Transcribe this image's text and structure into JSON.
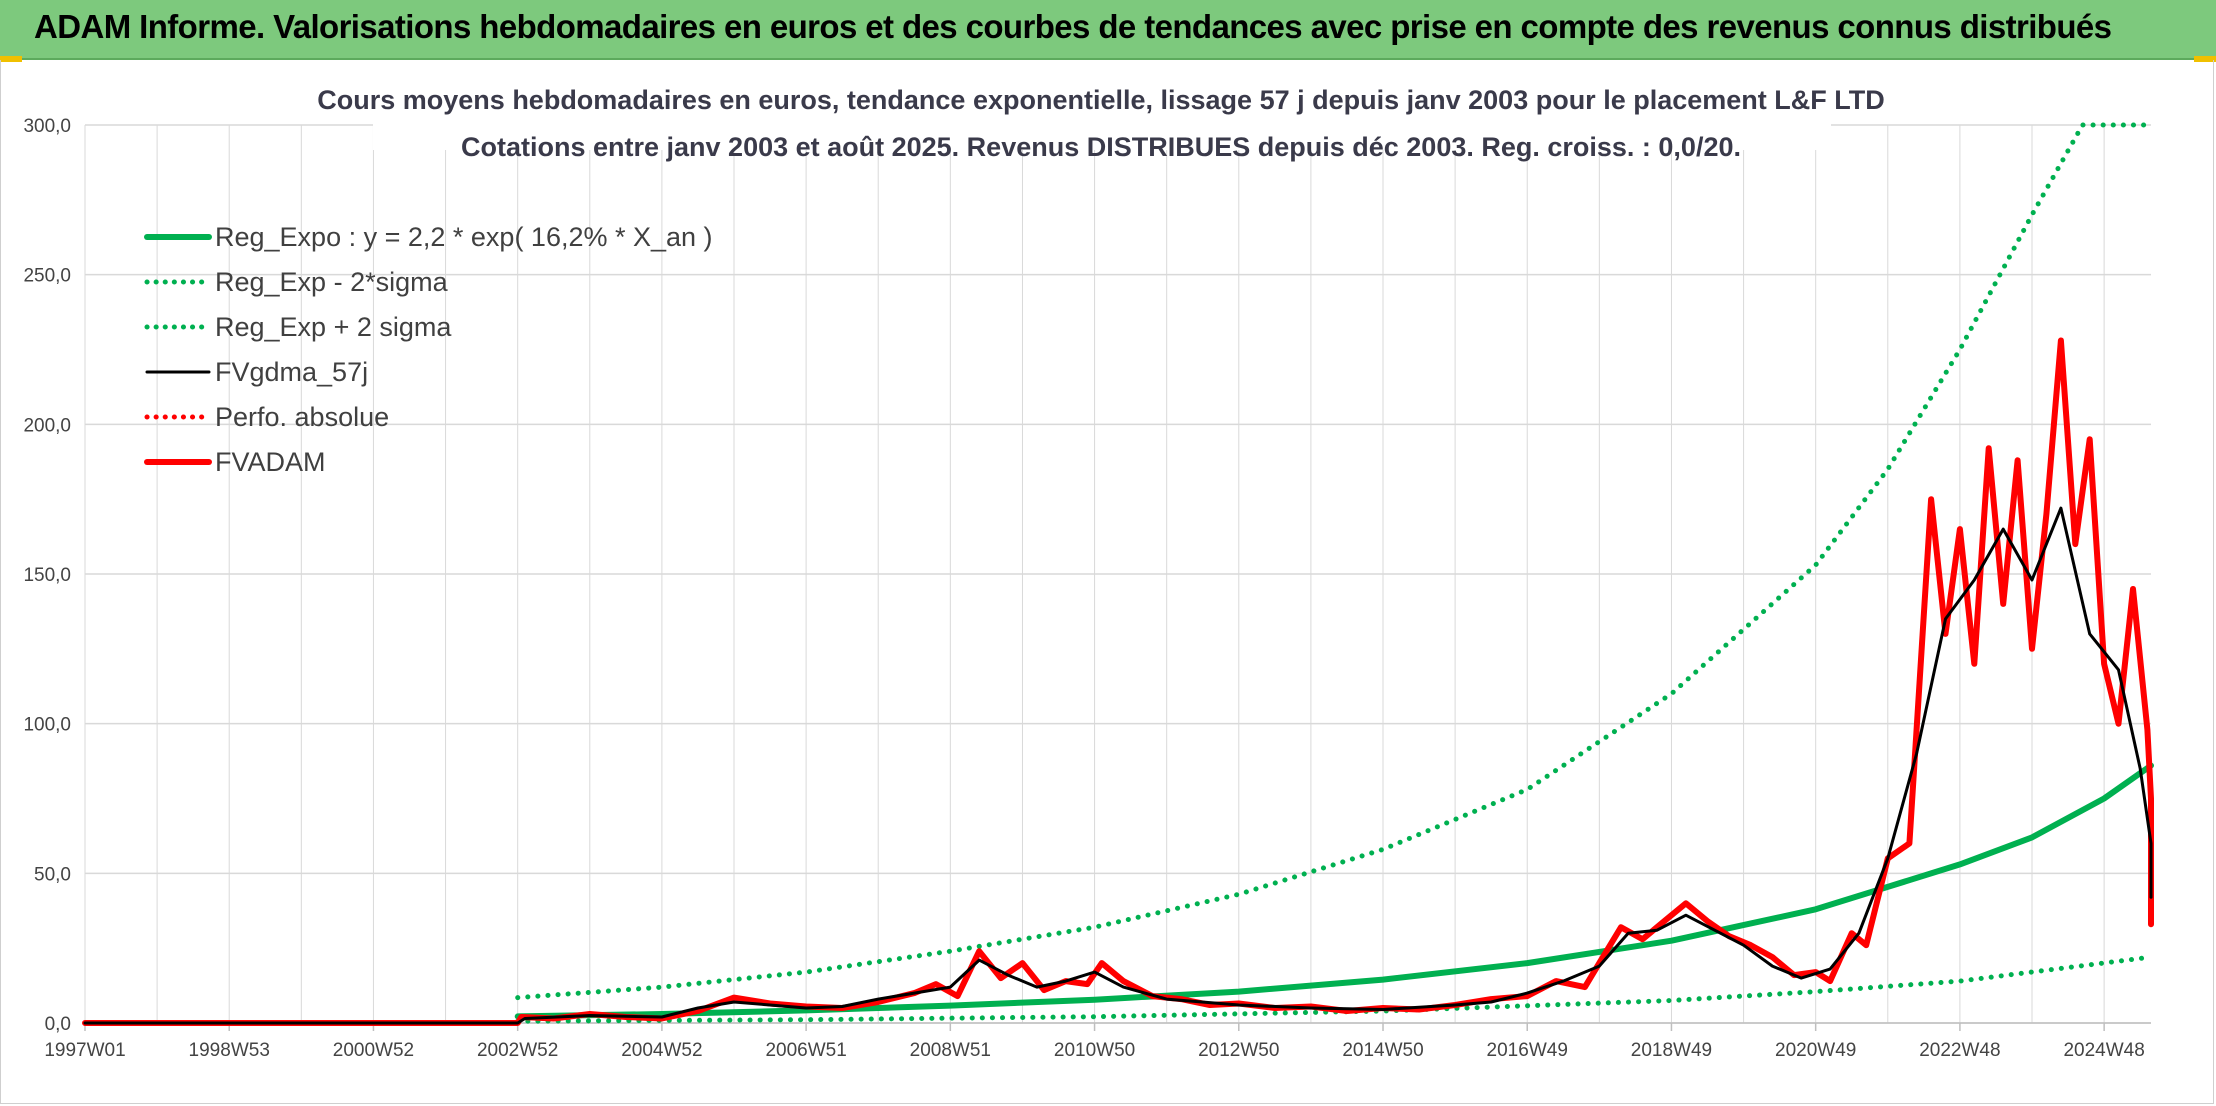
{
  "banner": {
    "title": "ADAM Informe. Valorisations hebdomadaires en euros et des courbes de tendances avec prise en compte des revenus connus distribués"
  },
  "colors": {
    "banner_bg": "#7dc97d",
    "trend_green": "#00b050",
    "price_red": "#ff0000",
    "smooth_black": "#000000",
    "grid": "#d9d9d9"
  },
  "chart_data": {
    "type": "line",
    "title": "Cours moyens hebdomadaires en euros, tendance exponentielle, lissage 57 j depuis janv 2003 pour le placement L&F LTD",
    "subtitle": "Cotations entre janv 2003 et août 2025. Revenus DISTRIBUES depuis déc 2003. Reg. croiss. : 0,0/20.",
    "xlabel": "",
    "ylabel": "",
    "x_range": [
      1997.0,
      2025.65
    ],
    "ylim": [
      0,
      300
    ],
    "y_ticks": [
      "0,0",
      "50,0",
      "100,0",
      "150,0",
      "200,0",
      "250,0",
      "300,0"
    ],
    "x_ticks": [
      {
        "label": "1997W01",
        "x": 1997.0
      },
      {
        "label": "1998W53",
        "x": 1999.0
      },
      {
        "label": "2000W52",
        "x": 2001.0
      },
      {
        "label": "2002W52",
        "x": 2003.0
      },
      {
        "label": "2004W52",
        "x": 2005.0
      },
      {
        "label": "2006W51",
        "x": 2007.0
      },
      {
        "label": "2008W51",
        "x": 2009.0
      },
      {
        "label": "2010W50",
        "x": 2011.0
      },
      {
        "label": "2012W50",
        "x": 2013.0
      },
      {
        "label": "2014W50",
        "x": 2015.0
      },
      {
        "label": "2016W49",
        "x": 2017.0
      },
      {
        "label": "2018W49",
        "x": 2019.0
      },
      {
        "label": "2020W49",
        "x": 2021.0
      },
      {
        "label": "2022W48",
        "x": 2023.0
      },
      {
        "label": "2024W48",
        "x": 2025.0
      }
    ],
    "grid": true,
    "legend_position": "top-left",
    "series": [
      {
        "name": "Reg_Expo : y = 2,2 * exp( 16,2% *  X_an )",
        "style": "solid-thick",
        "color": "#00b050",
        "points": [
          [
            2003.0,
            2.2
          ],
          [
            2005.0,
            3.0
          ],
          [
            2007.0,
            4.2
          ],
          [
            2009.0,
            5.8
          ],
          [
            2011.0,
            7.8
          ],
          [
            2013.0,
            10.5
          ],
          [
            2015.0,
            14.5
          ],
          [
            2017.0,
            20.0
          ],
          [
            2019.0,
            27.5
          ],
          [
            2021.0,
            38.0
          ],
          [
            2023.0,
            53.0
          ],
          [
            2024.0,
            62.0
          ],
          [
            2025.0,
            75.0
          ],
          [
            2025.65,
            86.0
          ]
        ]
      },
      {
        "name": "Reg_Exp - 2*sigma",
        "style": "dotted",
        "color": "#00b050",
        "points": [
          [
            2003.0,
            0.6
          ],
          [
            2007.0,
            1.1
          ],
          [
            2011.0,
            2.1
          ],
          [
            2015.0,
            4.0
          ],
          [
            2019.0,
            7.5
          ],
          [
            2021.0,
            10.5
          ],
          [
            2023.0,
            14.0
          ],
          [
            2025.65,
            22.0
          ]
        ]
      },
      {
        "name": "Reg_Exp + 2 sigma",
        "style": "dotted",
        "color": "#00b050",
        "points": [
          [
            2003.0,
            8.5
          ],
          [
            2005.0,
            12.0
          ],
          [
            2007.0,
            17.0
          ],
          [
            2009.0,
            24.0
          ],
          [
            2011.0,
            32.0
          ],
          [
            2013.0,
            43.0
          ],
          [
            2015.0,
            58.0
          ],
          [
            2017.0,
            78.0
          ],
          [
            2019.0,
            110.0
          ],
          [
            2021.0,
            153.0
          ],
          [
            2022.0,
            185.0
          ],
          [
            2023.0,
            225.0
          ],
          [
            2024.0,
            270.0
          ],
          [
            2024.7,
            300.0
          ],
          [
            2025.65,
            300.0
          ]
        ]
      },
      {
        "name": "FVgdma_57j",
        "style": "solid",
        "color": "#000000",
        "points": [
          [
            1997.0,
            0.0
          ],
          [
            2003.0,
            0.0
          ],
          [
            2003.1,
            1.5
          ],
          [
            2004.0,
            2.5
          ],
          [
            2005.0,
            2.0
          ],
          [
            2005.5,
            5.0
          ],
          [
            2006.0,
            7.0
          ],
          [
            2006.5,
            6.0
          ],
          [
            2007.0,
            5.0
          ],
          [
            2007.5,
            5.5
          ],
          [
            2008.0,
            8.0
          ],
          [
            2008.5,
            10.0
          ],
          [
            2009.0,
            12.0
          ],
          [
            2009.4,
            21.0
          ],
          [
            2009.8,
            16.0
          ],
          [
            2010.2,
            12.0
          ],
          [
            2010.6,
            14.0
          ],
          [
            2011.0,
            17.0
          ],
          [
            2011.4,
            12.0
          ],
          [
            2012.0,
            8.0
          ],
          [
            2013.0,
            6.0
          ],
          [
            2014.0,
            5.0
          ],
          [
            2015.0,
            4.5
          ],
          [
            2016.0,
            6.0
          ],
          [
            2016.5,
            7.0
          ],
          [
            2017.0,
            10.0
          ],
          [
            2017.5,
            14.0
          ],
          [
            2018.0,
            19.0
          ],
          [
            2018.4,
            30.0
          ],
          [
            2018.8,
            31.0
          ],
          [
            2019.2,
            36.0
          ],
          [
            2019.6,
            31.0
          ],
          [
            2020.0,
            26.0
          ],
          [
            2020.4,
            19.0
          ],
          [
            2020.8,
            15.0
          ],
          [
            2021.2,
            18.0
          ],
          [
            2021.6,
            30.0
          ],
          [
            2022.0,
            55.0
          ],
          [
            2022.4,
            90.0
          ],
          [
            2022.8,
            135.0
          ],
          [
            2023.2,
            148.0
          ],
          [
            2023.6,
            165.0
          ],
          [
            2024.0,
            148.0
          ],
          [
            2024.4,
            172.0
          ],
          [
            2024.8,
            130.0
          ],
          [
            2025.2,
            118.0
          ],
          [
            2025.5,
            85.0
          ],
          [
            2025.8,
            60.0
          ],
          [
            2026.2,
            45.0
          ],
          [
            2026.5,
            42.0
          ],
          [
            2026.7,
            47.0
          ]
        ]
      },
      {
        "name": "Perfo. absolue",
        "style": "dotted",
        "color": "#ff0000",
        "points": [
          [
            1997.0,
            0.0
          ],
          [
            2003.0,
            0.0
          ]
        ]
      },
      {
        "name": "FVADAM",
        "style": "solid-thick",
        "color": "#ff0000",
        "points": [
          [
            1997.0,
            0.0
          ],
          [
            2003.0,
            0.0
          ],
          [
            2003.05,
            2.0
          ],
          [
            2003.5,
            1.5
          ],
          [
            2004.0,
            3.0
          ],
          [
            2004.5,
            2.0
          ],
          [
            2005.0,
            1.5
          ],
          [
            2005.5,
            4.0
          ],
          [
            2006.0,
            8.5
          ],
          [
            2006.5,
            6.5
          ],
          [
            2007.0,
            5.5
          ],
          [
            2007.5,
            5.0
          ],
          [
            2008.0,
            7.0
          ],
          [
            2008.5,
            10.0
          ],
          [
            2008.8,
            13.0
          ],
          [
            2009.1,
            9.0
          ],
          [
            2009.4,
            24.0
          ],
          [
            2009.7,
            15.0
          ],
          [
            2010.0,
            20.0
          ],
          [
            2010.3,
            11.0
          ],
          [
            2010.6,
            14.0
          ],
          [
            2010.9,
            13.0
          ],
          [
            2011.1,
            20.0
          ],
          [
            2011.4,
            14.0
          ],
          [
            2011.8,
            9.0
          ],
          [
            2012.2,
            8.0
          ],
          [
            2012.6,
            6.0
          ],
          [
            2013.0,
            6.5
          ],
          [
            2013.5,
            5.0
          ],
          [
            2014.0,
            5.5
          ],
          [
            2014.5,
            4.0
          ],
          [
            2015.0,
            5.0
          ],
          [
            2015.5,
            4.5
          ],
          [
            2016.0,
            6.0
          ],
          [
            2016.5,
            8.0
          ],
          [
            2017.0,
            9.0
          ],
          [
            2017.4,
            14.0
          ],
          [
            2017.8,
            12.0
          ],
          [
            2018.0,
            20.0
          ],
          [
            2018.3,
            32.0
          ],
          [
            2018.6,
            28.0
          ],
          [
            2018.9,
            34.0
          ],
          [
            2019.2,
            40.0
          ],
          [
            2019.5,
            34.0
          ],
          [
            2019.8,
            29.0
          ],
          [
            2020.1,
            26.0
          ],
          [
            2020.4,
            22.0
          ],
          [
            2020.7,
            16.0
          ],
          [
            2021.0,
            17.0
          ],
          [
            2021.2,
            14.0
          ],
          [
            2021.5,
            30.0
          ],
          [
            2021.7,
            26.0
          ],
          [
            2022.0,
            55.0
          ],
          [
            2022.3,
            60.0
          ],
          [
            2022.6,
            175.0
          ],
          [
            2022.8,
            130.0
          ],
          [
            2023.0,
            165.0
          ],
          [
            2023.2,
            120.0
          ],
          [
            2023.4,
            192.0
          ],
          [
            2023.6,
            140.0
          ],
          [
            2023.8,
            188.0
          ],
          [
            2024.0,
            125.0
          ],
          [
            2024.2,
            170.0
          ],
          [
            2024.4,
            228.0
          ],
          [
            2024.6,
            160.0
          ],
          [
            2024.8,
            195.0
          ],
          [
            2025.0,
            120.0
          ],
          [
            2025.2,
            100.0
          ],
          [
            2025.4,
            145.0
          ],
          [
            2025.6,
            98.0
          ],
          [
            2025.8,
            75.0
          ],
          [
            2026.0,
            62.0
          ],
          [
            2026.2,
            55.0
          ],
          [
            2026.4,
            38.0
          ],
          [
            2026.6,
            33.0
          ],
          [
            2026.75,
            54.0
          ]
        ]
      }
    ]
  }
}
